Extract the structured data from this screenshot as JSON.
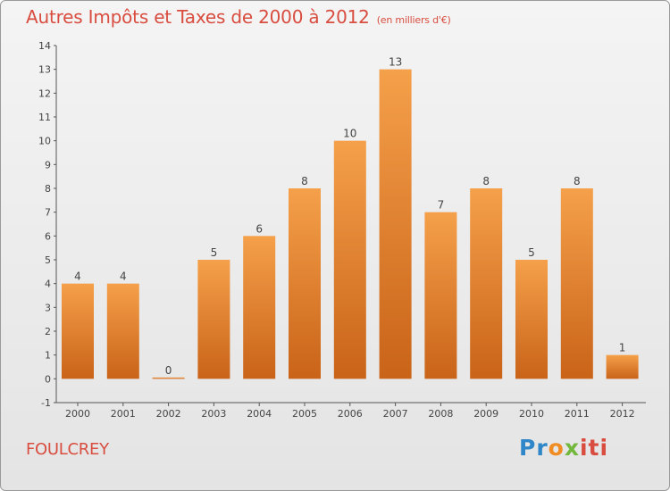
{
  "title": "Autres Impôts et Taxes de 2000 à 2012",
  "unit": "(en milliers d'€)",
  "city": "FOULCREY",
  "logo": {
    "part1": "Pr",
    "part2": "o",
    "part3": "x",
    "part4": "iti"
  },
  "colors": {
    "bar_top": "#f5a04a",
    "bar_bottom": "#c96318",
    "title": "#d84d3f"
  },
  "chart_data": {
    "type": "bar",
    "title": "Autres Impôts et Taxes de 2000 à 2012",
    "categories": [
      "2000",
      "2001",
      "2002",
      "2003",
      "2004",
      "2005",
      "2006",
      "2007",
      "2008",
      "2009",
      "2010",
      "2011",
      "2012"
    ],
    "values": [
      4,
      4,
      0,
      5,
      6,
      8,
      10,
      13,
      7,
      8,
      5,
      8,
      1
    ],
    "ylim": [
      -1,
      14
    ],
    "yticks": [
      "-1",
      "0",
      "1",
      "2",
      "3",
      "4",
      "5",
      "6",
      "7",
      "8",
      "9",
      "10",
      "11",
      "12",
      "13",
      "14"
    ],
    "grid": false,
    "data_labels": true
  }
}
